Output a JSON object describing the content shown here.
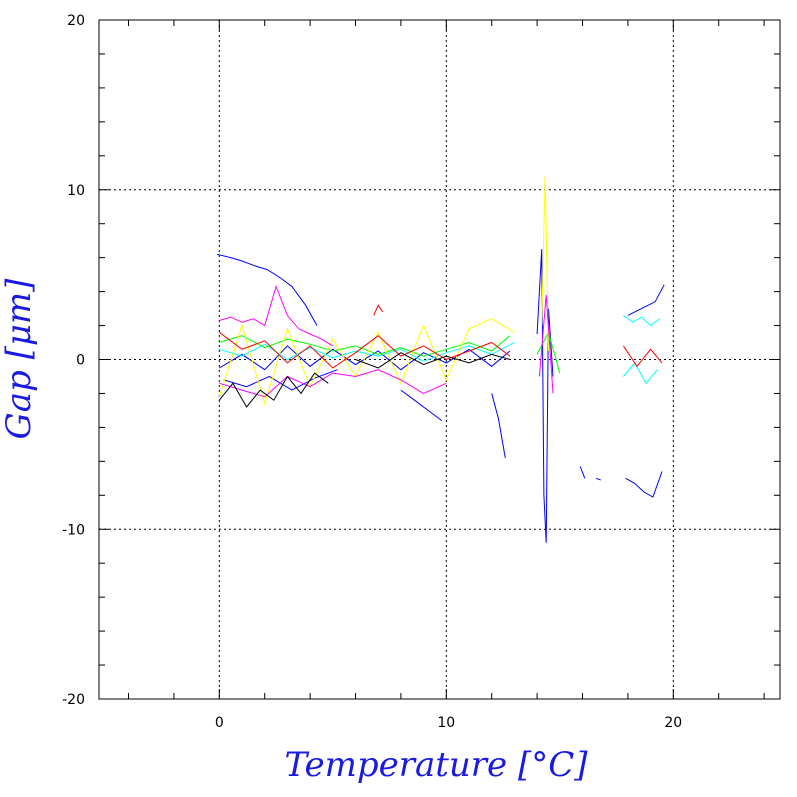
{
  "chart_data": {
    "type": "line",
    "xlabel": "Temperature [°C]",
    "ylabel": "Gap [μm]",
    "xlim": [
      -5.3,
      24.7
    ],
    "ylim": [
      -20,
      20
    ],
    "x_ticks": [
      0,
      10,
      20
    ],
    "y_ticks": [
      -20,
      -10,
      0,
      10,
      20
    ],
    "x_tick_labels": [
      "0",
      "10",
      "20"
    ],
    "y_tick_labels": [
      "-20",
      "-10",
      "0",
      "10",
      "20"
    ],
    "grid": true,
    "grid_x": [
      0,
      10,
      20
    ],
    "grid_y": [
      -10,
      0,
      10
    ],
    "grid_style": "dotted",
    "legend": "none",
    "series_colors": [
      "#0000ff",
      "#00ffff",
      "#00ff00",
      "#ffff00",
      "#ff0000",
      "#ff00ff",
      "#000000"
    ],
    "series": [
      {
        "color": "#0000ff",
        "x": [
          -0.1,
          0.5,
          1.0,
          1.6,
          2.1,
          2.7,
          3.2,
          3.8,
          4.3
        ],
        "values": [
          6.2,
          6.0,
          5.8,
          5.5,
          5.3,
          4.8,
          4.3,
          3.2,
          2.0
        ]
      },
      {
        "color": "#0000ff",
        "x": [
          0.0,
          1.0,
          2.0,
          3.0,
          4.0,
          5.0,
          6.0,
          7.0,
          8.0,
          9.0,
          10.0,
          11.0,
          12.0,
          12.8
        ],
        "values": [
          -0.5,
          0.3,
          -0.6,
          0.8,
          -0.4,
          0.6,
          -0.3,
          0.5,
          -0.6,
          0.4,
          -0.2,
          0.6,
          -0.4,
          0.5
        ]
      },
      {
        "color": "#0000ff",
        "x": [
          0.2,
          1.2,
          2.2,
          3.2,
          4.2,
          5.2
        ],
        "values": [
          -1.2,
          -1.6,
          -1.0,
          -1.8,
          -1.1,
          -0.6
        ]
      },
      {
        "color": "#0000ff",
        "x": [
          8.0,
          8.6,
          9.2,
          9.8
        ],
        "values": [
          -1.8,
          -2.4,
          -3.0,
          -3.6
        ]
      },
      {
        "color": "#0000ff",
        "x": [
          12.0,
          12.3,
          12.6
        ],
        "values": [
          -2.0,
          -3.5,
          -5.8
        ]
      },
      {
        "color": "#0000ff",
        "x": [
          14.0,
          14.2,
          14.3,
          14.4,
          14.5,
          14.7
        ],
        "values": [
          1.5,
          6.5,
          -8.0,
          -10.8,
          3.0,
          -1.0
        ]
      },
      {
        "color": "#0000ff",
        "x": [
          17.9,
          18.3,
          18.7,
          19.1,
          19.5
        ],
        "values": [
          -7.0,
          -7.3,
          -7.8,
          -8.1,
          -6.6
        ]
      },
      {
        "color": "#0000ff",
        "x": [
          18.0,
          18.6,
          19.2,
          19.6
        ],
        "values": [
          2.6,
          3.0,
          3.4,
          4.4
        ]
      },
      {
        "color": "#0000ff",
        "x": [
          15.9,
          16.1
        ],
        "values": [
          -6.3,
          -7.0
        ]
      },
      {
        "color": "#0000ff",
        "x": [
          16.6,
          16.8
        ],
        "values": [
          -7.0,
          -7.1
        ]
      },
      {
        "color": "#00ffff",
        "x": [
          0.0,
          1.0,
          2.0,
          3.0,
          4.0,
          5.0,
          6.0,
          7.0,
          8.0,
          9.0,
          10.0,
          11.0,
          12.0,
          13.0
        ],
        "values": [
          0.6,
          0.2,
          0.9,
          0.0,
          0.7,
          0.1,
          0.5,
          0.2,
          0.6,
          -0.1,
          0.4,
          0.8,
          0.3,
          1.0
        ]
      },
      {
        "color": "#00ffff",
        "x": [
          17.8,
          18.2,
          18.6,
          19.0,
          19.4
        ],
        "values": [
          2.6,
          2.2,
          2.5,
          2.0,
          2.4
        ]
      },
      {
        "color": "#00ffff",
        "x": [
          17.8,
          18.3,
          18.8,
          19.3
        ],
        "values": [
          -1.0,
          -0.2,
          -1.4,
          -0.6
        ]
      },
      {
        "color": "#00ff00",
        "x": [
          0.0,
          1.0,
          2.0,
          3.0,
          4.0,
          5.0,
          6.0,
          7.0,
          8.0,
          9.0,
          10.0,
          11.0,
          12.0,
          12.8
        ],
        "values": [
          1.0,
          1.4,
          0.7,
          1.2,
          0.9,
          0.5,
          0.8,
          0.3,
          0.7,
          0.2,
          0.6,
          1.0,
          0.5,
          1.4
        ]
      },
      {
        "color": "#00ff00",
        "x": [
          14.0,
          14.5,
          15.0
        ],
        "values": [
          0.3,
          1.6,
          -0.8
        ]
      },
      {
        "color": "#ffff00",
        "x": [
          0.0,
          1.0,
          2.0,
          3.0,
          4.0,
          5.0,
          6.0,
          7.0,
          8.0,
          9.0,
          10.0,
          11.0,
          12.0,
          13.0
        ],
        "values": [
          -2.2,
          2.0,
          -2.6,
          1.8,
          -1.6,
          1.2,
          -1.0,
          1.6,
          -1.4,
          2.0,
          -1.2,
          1.8,
          2.4,
          1.6
        ]
      },
      {
        "color": "#ffff00",
        "x": [
          14.2,
          14.35,
          14.5
        ],
        "values": [
          2.0,
          10.8,
          0.5
        ]
      },
      {
        "color": "#ff0000",
        "x": [
          0.0,
          1.0,
          2.0,
          3.0,
          4.0,
          5.0,
          6.0,
          7.0,
          8.0,
          9.0,
          10.0,
          11.0,
          12.0,
          12.8
        ],
        "values": [
          1.6,
          0.6,
          1.1,
          -0.2,
          0.8,
          -0.5,
          0.4,
          1.4,
          0.2,
          0.8,
          0.0,
          0.5,
          1.0,
          0.2
        ]
      },
      {
        "color": "#ff0000",
        "x": [
          6.8,
          7.0,
          7.2
        ],
        "values": [
          2.6,
          3.2,
          2.8
        ]
      },
      {
        "color": "#ff0000",
        "x": [
          17.8,
          18.4,
          19.0,
          19.5
        ],
        "values": [
          0.8,
          -0.4,
          0.6,
          -0.2
        ]
      },
      {
        "color": "#ff00ff",
        "x": [
          0.0,
          0.5,
          1.0,
          1.5,
          2.0,
          2.5,
          3.0,
          3.5,
          4.0,
          4.5,
          5.0
        ],
        "values": [
          2.3,
          2.5,
          2.2,
          2.4,
          2.0,
          4.3,
          2.6,
          1.8,
          1.5,
          1.2,
          0.8
        ]
      },
      {
        "color": "#ff00ff",
        "x": [
          0.0,
          1.0,
          2.0,
          3.0,
          4.0,
          5.0,
          6.0,
          7.0,
          8.0,
          9.0,
          10.0
        ],
        "values": [
          -1.4,
          -1.8,
          -2.2,
          -1.0,
          -1.6,
          -0.8,
          -1.0,
          -0.6,
          -1.2,
          -2.0,
          -1.4
        ]
      },
      {
        "color": "#ff00ff",
        "x": [
          14.1,
          14.4,
          14.7
        ],
        "values": [
          -1.0,
          3.8,
          -2.0
        ]
      },
      {
        "color": "#000000",
        "x": [
          0.0,
          0.6,
          1.2,
          1.8,
          2.4,
          3.0,
          3.6,
          4.2,
          4.8
        ],
        "values": [
          -2.4,
          -1.4,
          -2.8,
          -1.8,
          -2.4,
          -1.0,
          -2.0,
          -0.8,
          -1.4
        ]
      },
      {
        "color": "#000000",
        "x": [
          6.0,
          7.0,
          8.0,
          9.0,
          10.0,
          11.0,
          12.0,
          12.8
        ],
        "values": [
          0.0,
          -0.5,
          0.4,
          -0.3,
          0.2,
          -0.2,
          0.3,
          0.0
        ]
      }
    ]
  }
}
